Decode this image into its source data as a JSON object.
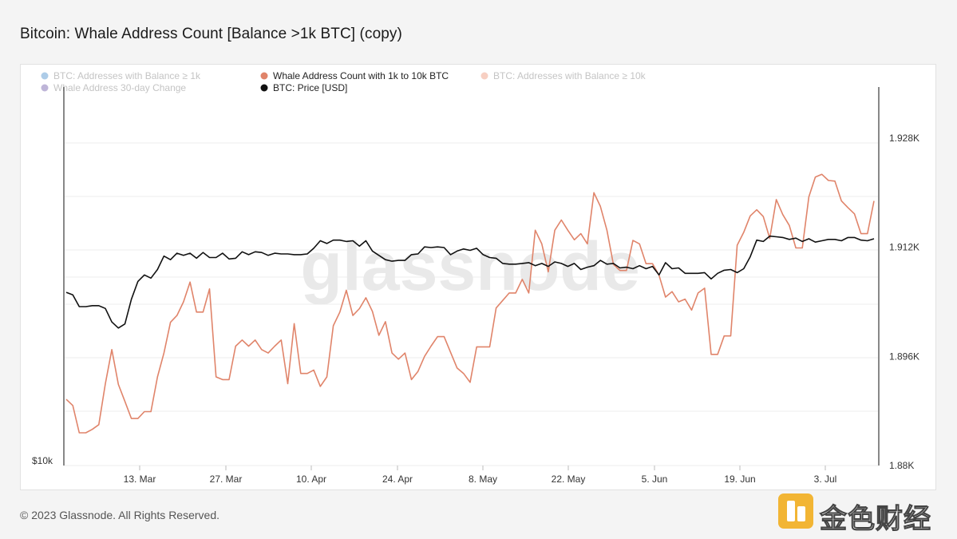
{
  "title": "Bitcoin: Whale Address Count [Balance >1k BTC] (copy)",
  "footer": "© 2023 Glassnode. All Rights Reserved.",
  "watermark_text": "glassnode",
  "corner_watermark_text": "金色财经",
  "colors": {
    "price": "#111111",
    "whale_1k_10k": "#e0846a",
    "gridline": "#ececec",
    "legend_faded": "#c4c4c4",
    "legend_active": "#222222"
  },
  "legend": [
    {
      "label": "BTC: Addresses with Balance ≥ 1k",
      "color": "#6aa3d6",
      "active": false
    },
    {
      "label": "Whale Address Count with 1k to 10k BTC",
      "color": "#e0846a",
      "active": true
    },
    {
      "label": "BTC: Addresses with Balance ≥ 10k",
      "color": "#f0a890",
      "active": false
    },
    {
      "label": "Whale Address 30-day Change",
      "color": "#8878b8",
      "active": false
    },
    {
      "label": "BTC: Price [USD]",
      "color": "#111111",
      "active": true
    }
  ],
  "chart_data": {
    "type": "line",
    "x_ticks": [
      "13. Mar",
      "27. Mar",
      "10. Apr",
      "24. Apr",
      "8. May",
      "22. May",
      "5. Jun",
      "19. Jun",
      "3. Jul"
    ],
    "right_axis": {
      "ticks": [
        "1.88K",
        "1.896K",
        "1.912K",
        "1.928K"
      ],
      "values": [
        1880,
        1896,
        1912,
        1928
      ],
      "range": [
        1880,
        1930
      ]
    },
    "left_axis": {
      "ticks": [
        "$10k"
      ],
      "scale": "log"
    },
    "x_range": [
      "1. Mar",
      "16. Jul"
    ],
    "series": [
      {
        "name": "Whale Address Count with 1k to 10k BTC",
        "axis": "right",
        "values": [
          1889.7,
          1888.8,
          1884.8,
          1884.8,
          1885.3,
          1886,
          1892,
          1897,
          1891.9,
          1889.4,
          1886.9,
          1886.9,
          1887.9,
          1887.9,
          1893,
          1896.5,
          1901,
          1902,
          1904,
          1906.9,
          1902.5,
          1902.5,
          1905.9,
          1893,
          1892.6,
          1892.6,
          1897.5,
          1898.4,
          1897.5,
          1898.4,
          1897,
          1896.5,
          1897.5,
          1898.4,
          1892,
          1900.8,
          1893.5,
          1893.5,
          1894,
          1891.6,
          1893,
          1900.5,
          1902.5,
          1905.7,
          1902,
          1903,
          1904.6,
          1902.6,
          1899.1,
          1901.1,
          1896.5,
          1895.6,
          1896.5,
          1892.6,
          1893.8,
          1896,
          1897.5,
          1898.9,
          1898.9,
          1896.6,
          1894.3,
          1893.5,
          1892.2,
          1897.4,
          1897.4,
          1897.4,
          1903.1,
          1904.2,
          1905.3,
          1905.3,
          1907.3,
          1905.3,
          1914.5,
          1912.5,
          1908.4,
          1914.5,
          1916,
          1914.5,
          1913.1,
          1914,
          1912.5,
          1920,
          1918,
          1914.5,
          1909.5,
          1908.6,
          1908.6,
          1913,
          1912.5,
          1909.6,
          1909.6,
          1907.9,
          1904.7,
          1905.5,
          1904,
          1904.4,
          1902.8,
          1905.3,
          1906,
          1896.3,
          1896.3,
          1899,
          1899,
          1912.3,
          1914.2,
          1916.6,
          1917.5,
          1916.5,
          1913.3,
          1919,
          1916.8,
          1915.2,
          1911.9,
          1911.9,
          1919.4,
          1922.3,
          1922.7,
          1921.8,
          1921.7,
          1918.8,
          1917.8,
          1916.9,
          1914,
          1914,
          1918.8
        ]
      },
      {
        "name": "BTC: Price [USD]",
        "axis": "left",
        "values": [
          23500,
          23200,
          21900,
          21900,
          22000,
          22000,
          21700,
          20300,
          19700,
          20100,
          22700,
          24800,
          25600,
          25200,
          26300,
          28100,
          27600,
          28500,
          28200,
          28500,
          27800,
          28600,
          27900,
          27900,
          28500,
          27700,
          27800,
          28700,
          28300,
          28700,
          28600,
          28200,
          28500,
          28400,
          28400,
          28300,
          28300,
          28400,
          29200,
          30300,
          29900,
          30400,
          30400,
          30200,
          30300,
          29500,
          30300,
          28800,
          28200,
          27600,
          27400,
          27500,
          27500,
          28300,
          28400,
          29400,
          29300,
          29400,
          29300,
          28300,
          28800,
          29100,
          28900,
          29200,
          28300,
          27900,
          27800,
          27100,
          27000,
          27000,
          27100,
          27200,
          26800,
          27100,
          26700,
          27300,
          27100,
          26700,
          27100,
          26300,
          26600,
          26800,
          27500,
          27000,
          27100,
          26500,
          26600,
          26400,
          26800,
          26400,
          26700,
          25600,
          27200,
          26400,
          26500,
          25800,
          25800,
          25800,
          25900,
          25100,
          25800,
          26200,
          26300,
          25900,
          26400,
          28000,
          30400,
          30200,
          31000,
          30900,
          30800,
          30500,
          30700,
          30200,
          30600,
          30100,
          30300,
          30500,
          30500,
          30300,
          30800,
          30800,
          30400,
          30300,
          30600
        ]
      }
    ]
  }
}
